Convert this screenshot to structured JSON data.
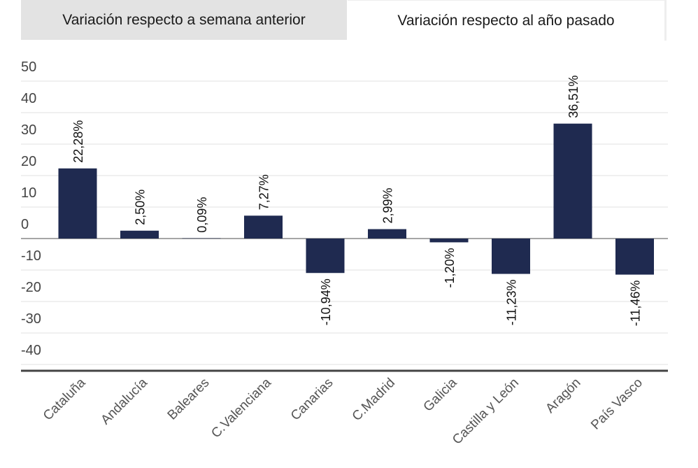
{
  "tabs": [
    {
      "label": "Variación respecto a semana anterior",
      "active": false
    },
    {
      "label": "Variación respecto al año pasado",
      "active": true
    }
  ],
  "chart_data": {
    "type": "bar",
    "categories": [
      "Cataluña",
      "Andalucía",
      "Baleares",
      "C.Valenciana",
      "Canarias",
      "C.Madrid",
      "Galicia",
      "Castilla y León",
      "Aragón",
      "País Vasco"
    ],
    "values": [
      22.28,
      2.5,
      0.09,
      7.27,
      -10.94,
      2.99,
      -1.2,
      -11.23,
      36.51,
      -11.46
    ],
    "data_labels": [
      "22,28%",
      "2,50%",
      "0,09%",
      "7,27%",
      "-10,94%",
      "2,99%",
      "-1,20%",
      "-11,23%",
      "36,51%",
      "-11,46%"
    ],
    "yticks": [
      50,
      40,
      30,
      20,
      10,
      0,
      -10,
      -20,
      -30,
      -40
    ],
    "ylim": [
      -42,
      50
    ],
    "grid": true,
    "bar_color": "#1f2a50"
  }
}
